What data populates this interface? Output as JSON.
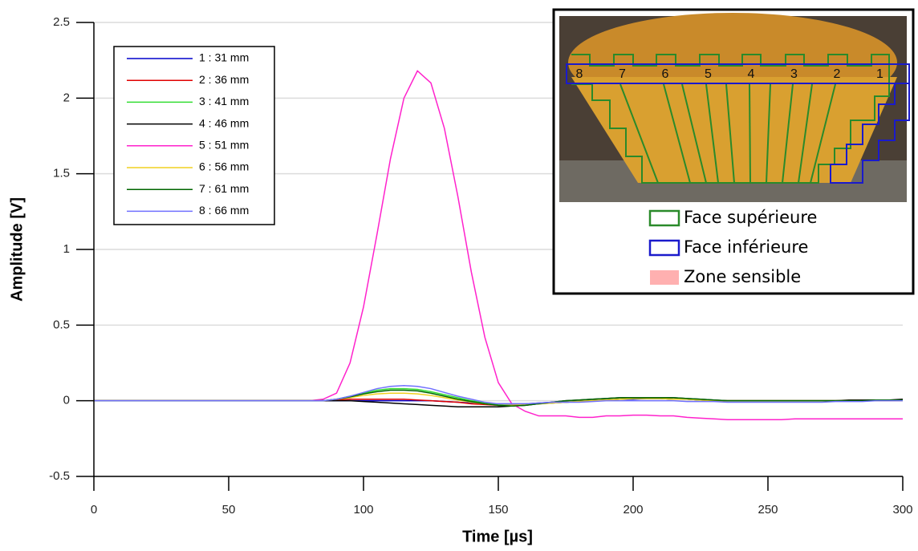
{
  "chart_data": {
    "type": "line",
    "xlabel": "Time [µs]",
    "ylabel": "Amplitude [V]",
    "xlim": [
      0,
      300
    ],
    "xticks": [
      0,
      50,
      100,
      150,
      200,
      250,
      300
    ],
    "ylim": [
      -0.5,
      2.5
    ],
    "yticks": [
      -0.5,
      0,
      0.5,
      1,
      1.5,
      2,
      2.5
    ],
    "grid": true,
    "legend": "upper left",
    "x": [
      0,
      5,
      10,
      15,
      20,
      25,
      30,
      35,
      40,
      45,
      50,
      55,
      60,
      65,
      70,
      75,
      80,
      85,
      90,
      95,
      100,
      105,
      110,
      115,
      120,
      125,
      130,
      135,
      140,
      145,
      150,
      155,
      160,
      165,
      170,
      175,
      180,
      185,
      190,
      195,
      200,
      205,
      210,
      215,
      220,
      225,
      230,
      235,
      240,
      245,
      250,
      255,
      260,
      265,
      270,
      275,
      280,
      285,
      290,
      295,
      300
    ],
    "series": [
      {
        "name": "1 : 31 mm",
        "color": "#0000cc",
        "values": [
          0,
          0,
          0,
          0,
          0,
          0,
          0,
          0,
          0,
          0,
          0,
          0,
          0,
          0,
          0,
          0,
          0,
          0,
          0,
          0,
          0,
          0,
          0,
          0,
          0,
          0,
          -0.005,
          -0.01,
          -0.015,
          -0.02,
          -0.02,
          -0.02,
          -0.02,
          -0.015,
          -0.01,
          -0.01,
          -0.005,
          0,
          0.005,
          0.01,
          0.01,
          0.015,
          0.015,
          0.01,
          0.01,
          0.005,
          0,
          0,
          0,
          0,
          0,
          0,
          0,
          0,
          0,
          0,
          0,
          0,
          0,
          0,
          0
        ]
      },
      {
        "name": "2 : 36 mm",
        "color": "#e00000",
        "values": [
          0,
          0,
          0,
          0,
          0,
          0,
          0,
          0,
          0,
          0,
          0,
          0,
          0,
          0,
          0,
          0,
          0,
          0,
          0.005,
          0.01,
          0.01,
          0.01,
          0.01,
          0.01,
          0.005,
          0,
          -0.005,
          -0.01,
          -0.02,
          -0.025,
          -0.03,
          -0.03,
          -0.025,
          -0.02,
          -0.015,
          -0.01,
          -0.005,
          0,
          0.005,
          0.01,
          0.015,
          0.015,
          0.015,
          0.01,
          0.01,
          0.005,
          0,
          0,
          0,
          0,
          0,
          0,
          0,
          0,
          0,
          0,
          0,
          0,
          0,
          0,
          0
        ]
      },
      {
        "name": "3 : 41 mm",
        "color": "#33dd33",
        "values": [
          0,
          0,
          0,
          0,
          0,
          0,
          0,
          0,
          0,
          0,
          0,
          0,
          0,
          0,
          0,
          0,
          0,
          0,
          0.01,
          0.03,
          0.05,
          0.07,
          0.08,
          0.08,
          0.075,
          0.06,
          0.04,
          0.02,
          0,
          -0.015,
          -0.025,
          -0.03,
          -0.025,
          -0.02,
          -0.015,
          -0.01,
          -0.005,
          0,
          0.005,
          0.01,
          0.015,
          0.015,
          0.015,
          0.01,
          0.01,
          0.005,
          0,
          0,
          0,
          0,
          0,
          0,
          0,
          0,
          0,
          0,
          0,
          0,
          0,
          0.005,
          0.005
        ]
      },
      {
        "name": "4 : 46 mm",
        "color": "#000000",
        "values": [
          0,
          0,
          0,
          0,
          0,
          0,
          0,
          0,
          0,
          0,
          0,
          0,
          0,
          0,
          0,
          0,
          0,
          0,
          0,
          0,
          -0.005,
          -0.01,
          -0.015,
          -0.02,
          -0.025,
          -0.03,
          -0.035,
          -0.04,
          -0.04,
          -0.04,
          -0.04,
          -0.035,
          -0.03,
          -0.02,
          -0.01,
          0,
          0.005,
          0.01,
          0.015,
          0.02,
          0.02,
          0.02,
          0.02,
          0.02,
          0.015,
          0.01,
          0.005,
          0,
          0,
          0,
          0,
          0,
          0,
          0,
          0,
          0,
          0.005,
          0.005,
          0.005,
          0.005,
          0.01
        ]
      },
      {
        "name": "5 : 51 mm",
        "color": "#ff22cc",
        "values": [
          0,
          0,
          0,
          0,
          0,
          0,
          0,
          0,
          0,
          0,
          0,
          0,
          0,
          0,
          0,
          0,
          0,
          0.01,
          0.05,
          0.25,
          0.62,
          1.1,
          1.6,
          2.0,
          2.18,
          2.1,
          1.8,
          1.35,
          0.85,
          0.42,
          0.12,
          -0.02,
          -0.07,
          -0.1,
          -0.1,
          -0.1,
          -0.11,
          -0.11,
          -0.1,
          -0.1,
          -0.095,
          -0.095,
          -0.1,
          -0.1,
          -0.11,
          -0.115,
          -0.12,
          -0.125,
          -0.125,
          -0.125,
          -0.125,
          -0.125,
          -0.12,
          -0.12,
          -0.12,
          -0.12,
          -0.12,
          -0.12,
          -0.12,
          -0.12,
          -0.12
        ]
      },
      {
        "name": "6 : 56 mm",
        "color": "#f0d020",
        "values": [
          0,
          0,
          0,
          0,
          0,
          0,
          0,
          0,
          0,
          0,
          0,
          0,
          0,
          0,
          0,
          0,
          0,
          0,
          0.01,
          0.02,
          0.035,
          0.045,
          0.05,
          0.05,
          0.045,
          0.035,
          0.02,
          0.005,
          -0.01,
          -0.02,
          -0.03,
          -0.03,
          -0.025,
          -0.02,
          -0.015,
          -0.01,
          -0.005,
          0,
          0.005,
          0.01,
          0.015,
          0.015,
          0.015,
          0.01,
          0.01,
          0.005,
          0,
          0,
          0,
          0,
          0,
          0,
          0,
          0,
          0,
          0,
          0,
          0,
          0,
          0,
          0
        ]
      },
      {
        "name": "7 : 61 mm",
        "color": "#006600",
        "values": [
          0,
          0,
          0,
          0,
          0,
          0,
          0,
          0,
          0,
          0,
          0,
          0,
          0,
          0,
          0,
          0,
          0,
          0,
          0.01,
          0.025,
          0.045,
          0.06,
          0.07,
          0.07,
          0.065,
          0.05,
          0.03,
          0.01,
          -0.005,
          -0.02,
          -0.03,
          -0.035,
          -0.03,
          -0.02,
          -0.01,
          0,
          0.005,
          0.01,
          0.015,
          0.02,
          0.02,
          0.02,
          0.02,
          0.02,
          0.015,
          0.01,
          0.005,
          0,
          0,
          0,
          0,
          0,
          0,
          0,
          0,
          0,
          0,
          0,
          0.005,
          0.005,
          0.005
        ]
      },
      {
        "name": "8 : 66 mm",
        "color": "#7070ff",
        "values": [
          0,
          0,
          0,
          0,
          0,
          0,
          0,
          0,
          0,
          0,
          0,
          0,
          0,
          0,
          0,
          0,
          0,
          0,
          0.01,
          0.03,
          0.055,
          0.08,
          0.095,
          0.1,
          0.095,
          0.08,
          0.055,
          0.03,
          0.01,
          -0.01,
          -0.02,
          -0.02,
          -0.02,
          -0.015,
          -0.01,
          -0.01,
          -0.01,
          -0.005,
          0,
          0,
          0,
          0,
          0,
          0,
          -0.005,
          -0.005,
          -0.005,
          -0.01,
          -0.01,
          -0.01,
          -0.01,
          -0.01,
          -0.01,
          -0.01,
          -0.01,
          -0.005,
          -0.005,
          -0.005,
          0,
          0,
          0
        ]
      }
    ],
    "inset": {
      "zone_labels": [
        "8",
        "7",
        "6",
        "5",
        "4",
        "3",
        "2",
        "1"
      ],
      "legend": [
        {
          "label": "Face supérieure",
          "color": "#2a8a2a"
        },
        {
          "label": "Face inférieure",
          "color": "#1a1acc"
        },
        {
          "label": "Zone sensible",
          "color": "#ffb0b0"
        }
      ]
    }
  }
}
